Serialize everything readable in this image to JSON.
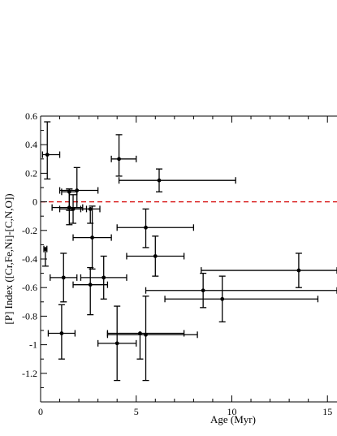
{
  "chart_data": {
    "type": "scatter",
    "title": "",
    "xlabel": "Age (Myr)",
    "ylabel": "[P] Index ([Cr,Fe,Ni]-[C,N,O])",
    "xlim": [
      0,
      15.5
    ],
    "ylim": [
      -1.4,
      0.6
    ],
    "xticks": [
      0,
      5,
      10,
      15
    ],
    "xtick_labels": [
      "0",
      "5",
      "10",
      "15"
    ],
    "yticks": [
      0.6,
      0.4,
      0.2,
      0,
      -0.2,
      -0.4,
      -0.6,
      -0.8,
      -1,
      -1.2
    ],
    "ytick_labels": [
      "0.6",
      "0.4",
      "0.2",
      "0",
      "-0.2",
      "-0.4",
      "-0.6",
      "-0.8",
      "-1",
      "-1.2"
    ],
    "reference_line": {
      "y": 0,
      "style": "dashed",
      "color": "#d40000"
    },
    "grid": false,
    "legend": "none",
    "marker_color": "#000000",
    "points": [
      {
        "x": 0.35,
        "y": 0.33,
        "xerr": [
          0.25,
          0.65
        ],
        "yerr": [
          0.17,
          0.23
        ]
      },
      {
        "x": 4.1,
        "y": 0.3,
        "xerr": [
          0.4,
          0.9
        ],
        "yerr": [
          0.12,
          0.17
        ]
      },
      {
        "x": 6.2,
        "y": 0.15,
        "xerr": [
          2.1,
          4.0
        ],
        "yerr": [
          0.08,
          0.08
        ]
      },
      {
        "x": 1.9,
        "y": 0.08,
        "xerr": [
          0.9,
          1.1
        ],
        "yerr": [
          0.12,
          0.16
        ]
      },
      {
        "x": 1.5,
        "y": -0.04,
        "xerr": [
          0.9,
          0.7
        ],
        "yerr": [
          0.12,
          0.13
        ]
      },
      {
        "x": 1.5,
        "y": 0.07,
        "xerr": [
          0.4,
          0.4
        ],
        "yerr": [
          0.13,
          0.02
        ]
      },
      {
        "x": 1.7,
        "y": -0.05,
        "xerr": [
          0.7,
          0.7
        ],
        "yerr": [
          0.1,
          0.1
        ]
      },
      {
        "x": 2.6,
        "y": -0.05,
        "xerr": [
          0.5,
          0.5
        ],
        "yerr": [
          0.1,
          0.0
        ]
      },
      {
        "x": 2.7,
        "y": -0.25,
        "xerr": [
          1.0,
          1.0
        ],
        "yerr": [
          0.22,
          0.22
        ]
      },
      {
        "x": 5.5,
        "y": -0.18,
        "xerr": [
          1.5,
          2.5
        ],
        "yerr": [
          0.14,
          0.13
        ]
      },
      {
        "x": 0.25,
        "y": -0.33,
        "xerr": [
          0.08,
          0.08
        ],
        "yerr": [
          0.12,
          0.0
        ]
      },
      {
        "x": 6.0,
        "y": -0.38,
        "xerr": [
          1.5,
          1.5
        ],
        "yerr": [
          0.14,
          0.14
        ]
      },
      {
        "x": 1.2,
        "y": -0.53,
        "xerr": [
          0.7,
          0.7
        ],
        "yerr": [
          0.17,
          0.17
        ]
      },
      {
        "x": 3.3,
        "y": -0.53,
        "xerr": [
          1.2,
          1.2
        ],
        "yerr": [
          0.15,
          0.15
        ]
      },
      {
        "x": 2.6,
        "y": -0.58,
        "xerr": [
          0.9,
          0.9
        ],
        "yerr": [
          0.21,
          0.12
        ]
      },
      {
        "x": 13.5,
        "y": -0.48,
        "xerr": [
          5.1,
          2.0
        ],
        "yerr": [
          0.12,
          0.12
        ]
      },
      {
        "x": 8.5,
        "y": -0.62,
        "xerr": [
          3.0,
          7.0
        ],
        "yerr": [
          0.12,
          0.12
        ]
      },
      {
        "x": 9.5,
        "y": -0.68,
        "xerr": [
          3.0,
          5.0
        ],
        "yerr": [
          0.16,
          0.16
        ]
      },
      {
        "x": 1.1,
        "y": -0.92,
        "xerr": [
          0.7,
          0.7
        ],
        "yerr": [
          0.18,
          0.2
        ]
      },
      {
        "x": 4.0,
        "y": -0.99,
        "xerr": [
          1.0,
          1.0
        ],
        "yerr": [
          0.26,
          0.26
        ]
      },
      {
        "x": 5.2,
        "y": -0.92,
        "xerr": [
          1.7,
          2.3
        ],
        "yerr": [
          0.18,
          0.0
        ]
      },
      {
        "x": 5.5,
        "y": -0.93,
        "xerr": [
          2.0,
          2.7
        ],
        "yerr": [
          0.32,
          0.27
        ]
      }
    ]
  }
}
